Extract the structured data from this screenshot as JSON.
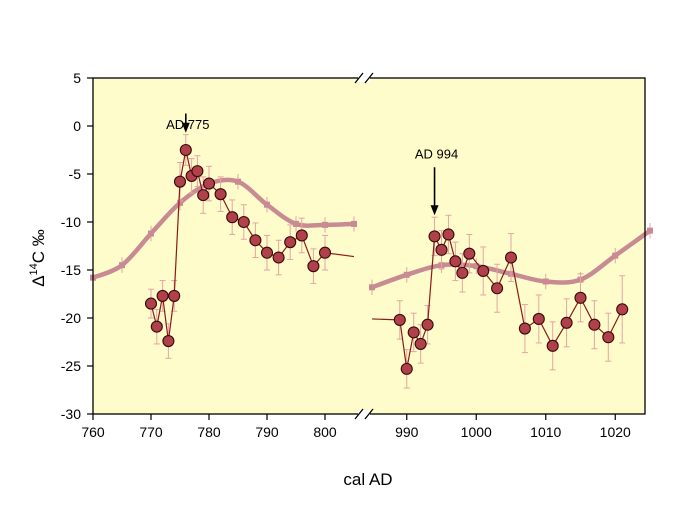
{
  "chart_data": {
    "type": "scatter",
    "title": "",
    "xlabel": "cal AD",
    "ylabel": "Δ14C ‰",
    "xlim": [
      760,
      1025
    ],
    "ylim": [
      -30,
      5
    ],
    "axis_break": "between 805 and 985 (break marks // on top and bottom axes)",
    "x_ticks": [
      760,
      770,
      780,
      790,
      800,
      990,
      1000,
      1010,
      1020
    ],
    "y_ticks": [
      5,
      0,
      -5,
      -10,
      -15,
      -20,
      -25,
      -30
    ],
    "background_color": "#fdfcca",
    "colors": {
      "points": "#b0404a",
      "point_line": "#8b1a1a",
      "curve": "#c88a93",
      "errorbars": "#e7a4a4"
    },
    "annotations": [
      {
        "label": "AD 775",
        "x": 776,
        "y": -0.3,
        "arrow_to_y": -0.7,
        "arrow_from_y": 1.3
      },
      {
        "label": "AD 994",
        "x": 994,
        "y": -3.4,
        "arrow_to_y": -9.3,
        "arrow_from_y": -4.3
      }
    ],
    "series": [
      {
        "segment": "left",
        "style": "points-with-errorbars",
        "x": [
          770,
          771,
          772,
          773,
          774,
          775,
          776,
          777,
          778,
          779,
          780,
          782,
          784,
          786,
          788,
          790,
          792,
          794,
          796,
          798,
          800
        ],
        "y": [
          -18.5,
          -20.9,
          -17.7,
          -22.4,
          -17.7,
          -5.8,
          -2.5,
          -5.2,
          -4.7,
          -7.2,
          -6.0,
          -7.1,
          -9.5,
          -10.0,
          -11.9,
          -13.2,
          -13.7,
          -12.1,
          -11.4,
          -14.6,
          -13.2
        ],
        "err": [
          1.5,
          1.8,
          1.6,
          1.8,
          1.6,
          2.0,
          1.6,
          1.8,
          1.6,
          1.9,
          1.8,
          1.8,
          1.8,
          1.8,
          1.8,
          1.8,
          1.8,
          1.8,
          1.8,
          1.8,
          1.8
        ],
        "tail": {
          "x": 805,
          "y": -13.6
        }
      },
      {
        "segment": "right",
        "style": "points-with-errorbars",
        "lead": {
          "x": 985,
          "y": -20.1
        },
        "x": [
          989,
          990,
          991,
          992,
          993,
          994,
          995,
          996,
          997,
          998,
          999,
          1001,
          1003,
          1005,
          1007,
          1009,
          1011,
          1013,
          1015,
          1017,
          1019,
          1021
        ],
        "y": [
          -20.2,
          -25.3,
          -21.5,
          -22.7,
          -20.7,
          -11.5,
          -12.9,
          -11.3,
          -14.1,
          -15.3,
          -13.3,
          -15.1,
          -16.9,
          -13.7,
          -21.1,
          -20.1,
          -22.9,
          -20.5,
          -17.9,
          -20.7,
          -22.0,
          -19.1
        ],
        "err": [
          2.0,
          2.0,
          2.0,
          2.0,
          2.0,
          2.0,
          2.0,
          2.0,
          2.0,
          2.0,
          2.0,
          2.5,
          2.5,
          2.5,
          2.5,
          2.5,
          2.5,
          2.5,
          2.5,
          2.5,
          2.5,
          3.5
        ]
      },
      {
        "segment": "left",
        "style": "model-curve",
        "x": [
          760,
          765,
          770,
          775,
          780,
          785,
          790,
          795,
          800,
          805
        ],
        "y": [
          -15.8,
          -14.5,
          -11.2,
          -8.0,
          -6.0,
          -5.8,
          -8.2,
          -10.2,
          -10.3,
          -10.2
        ],
        "err": [
          0.8,
          0.8,
          0.8,
          0.8,
          0.8,
          0.8,
          0.8,
          0.8,
          0.8,
          0.8
        ]
      },
      {
        "segment": "right",
        "style": "model-curve",
        "x": [
          985,
          990,
          995,
          1000,
          1005,
          1010,
          1015,
          1020,
          1025
        ],
        "y": [
          -16.8,
          -15.5,
          -14.5,
          -14.6,
          -15.4,
          -16.2,
          -16.0,
          -13.5,
          -10.9
        ],
        "err": [
          0.8,
          0.8,
          0.8,
          0.8,
          0.8,
          0.8,
          0.8,
          0.8,
          0.8
        ]
      }
    ]
  }
}
